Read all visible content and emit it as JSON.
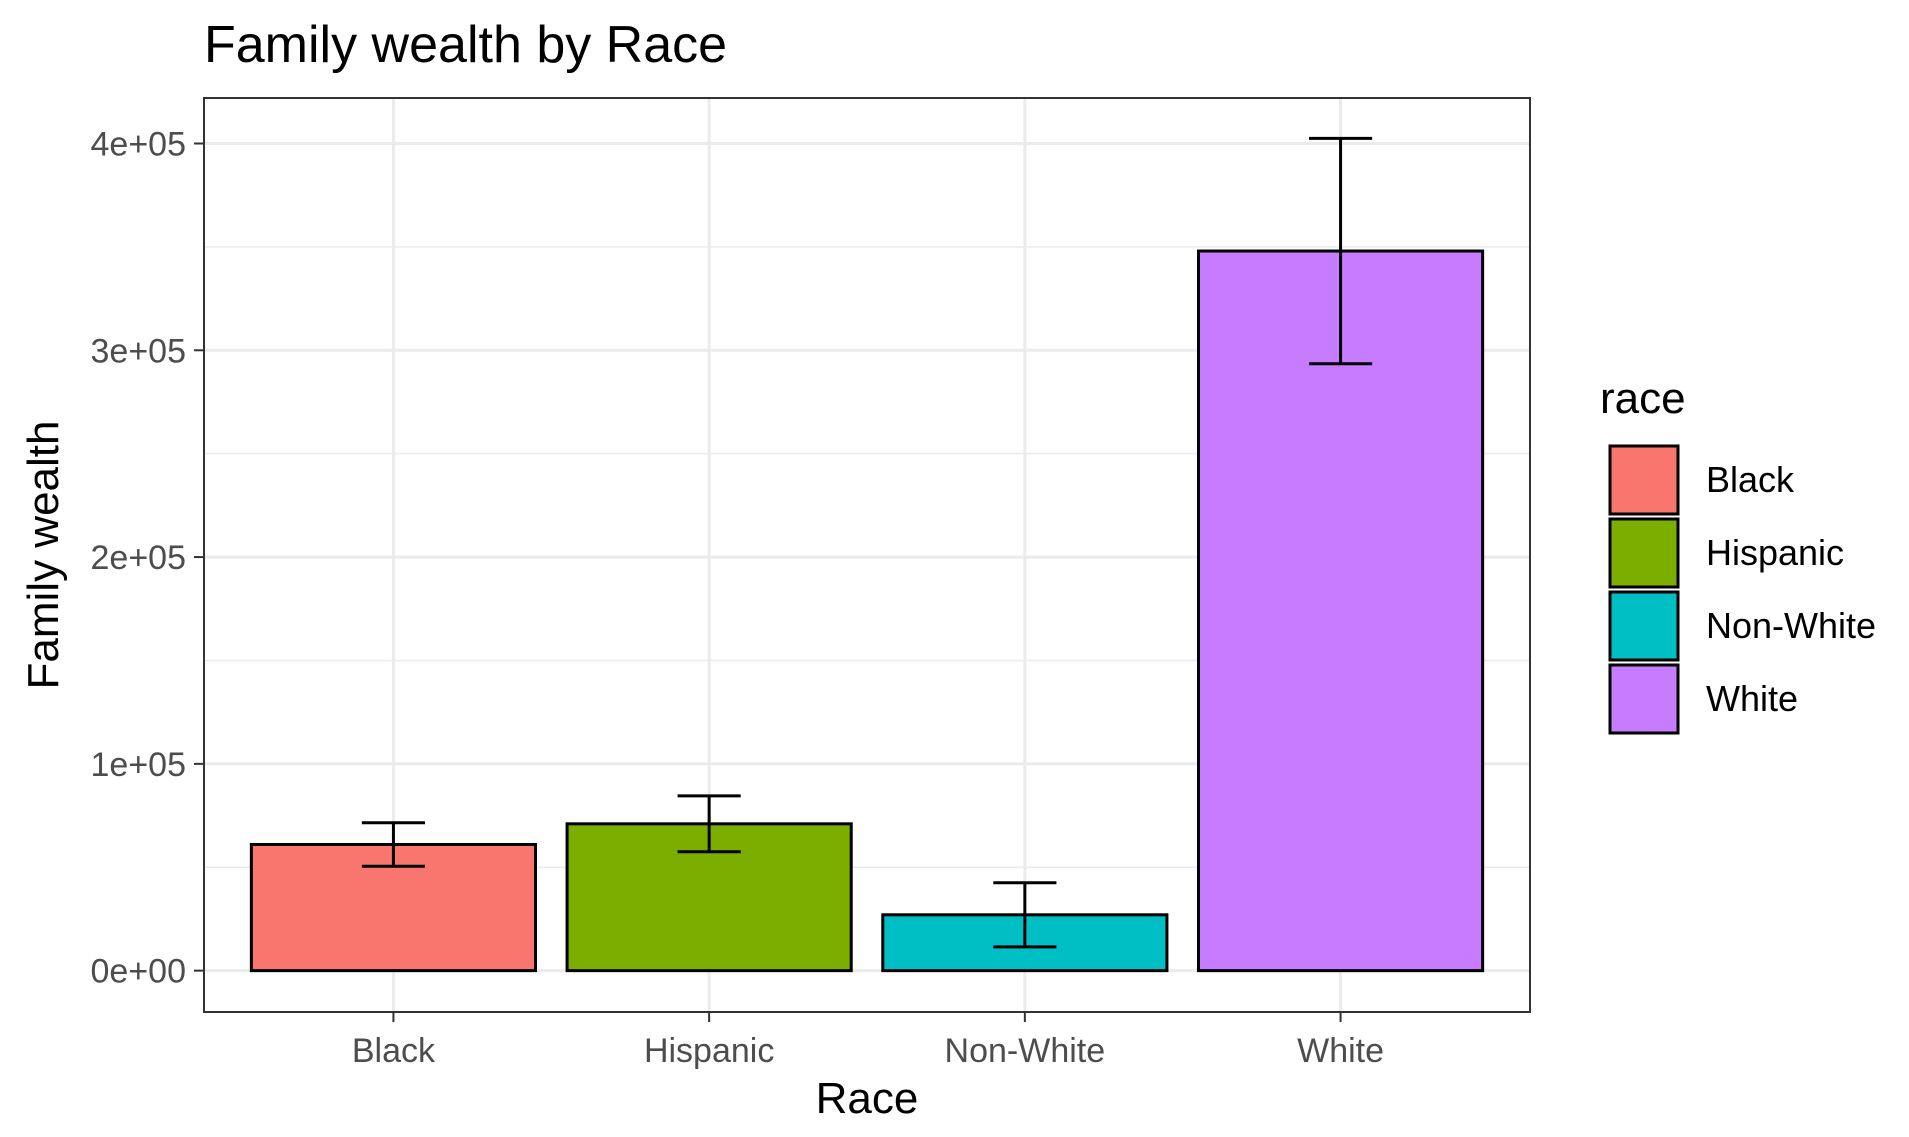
{
  "chart_data": {
    "type": "bar",
    "title": "Family wealth by Race",
    "xlabel": "Race",
    "ylabel": "Family wealth",
    "categories": [
      "Black",
      "Hispanic",
      "Non-White",
      "White"
    ],
    "values": [
      61000,
      71000,
      27000,
      348000
    ],
    "error_low": [
      50500,
      57500,
      11500,
      293500
    ],
    "error_high": [
      71500,
      84500,
      42500,
      402500
    ],
    "colors": [
      "#F8766D",
      "#7CAE00",
      "#00BFC4",
      "#C77CFF"
    ],
    "ylim": [
      -20000,
      422000
    ],
    "yticks": [
      0,
      100000,
      200000,
      300000,
      400000
    ],
    "ytick_labels": [
      "0e+00",
      "1e+05",
      "2e+05",
      "3e+05",
      "4e+05"
    ],
    "grid": true,
    "legend": {
      "title": "race",
      "placement": "right",
      "entries": [
        "Black",
        "Hispanic",
        "Non-White",
        "White"
      ]
    }
  }
}
